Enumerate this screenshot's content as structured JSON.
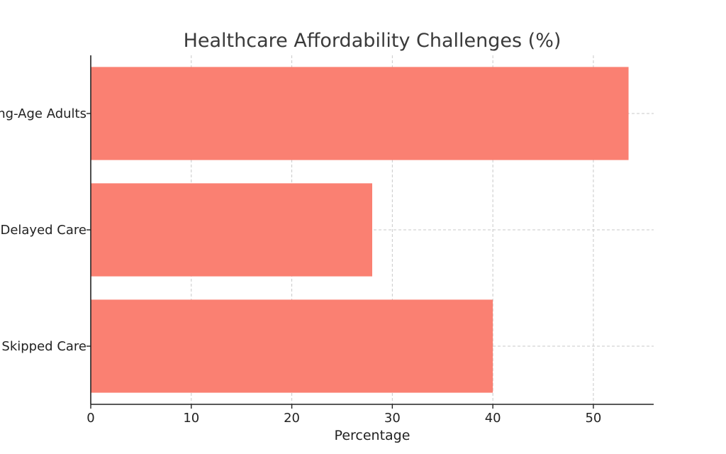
{
  "chart_data": {
    "type": "bar",
    "orientation": "horizontal",
    "title": "Healthcare Affordability Challenges (%)",
    "xlabel": "Percentage",
    "ylabel": "",
    "categories": [
      "Working-Age Adults",
      "Delayed Care",
      "Skipped Care"
    ],
    "values": [
      53.5,
      28,
      40
    ],
    "xlim": [
      0,
      56
    ],
    "xticks": [
      0,
      10,
      20,
      30,
      40,
      50
    ],
    "grid": true,
    "bar_color": "#fa8072"
  }
}
